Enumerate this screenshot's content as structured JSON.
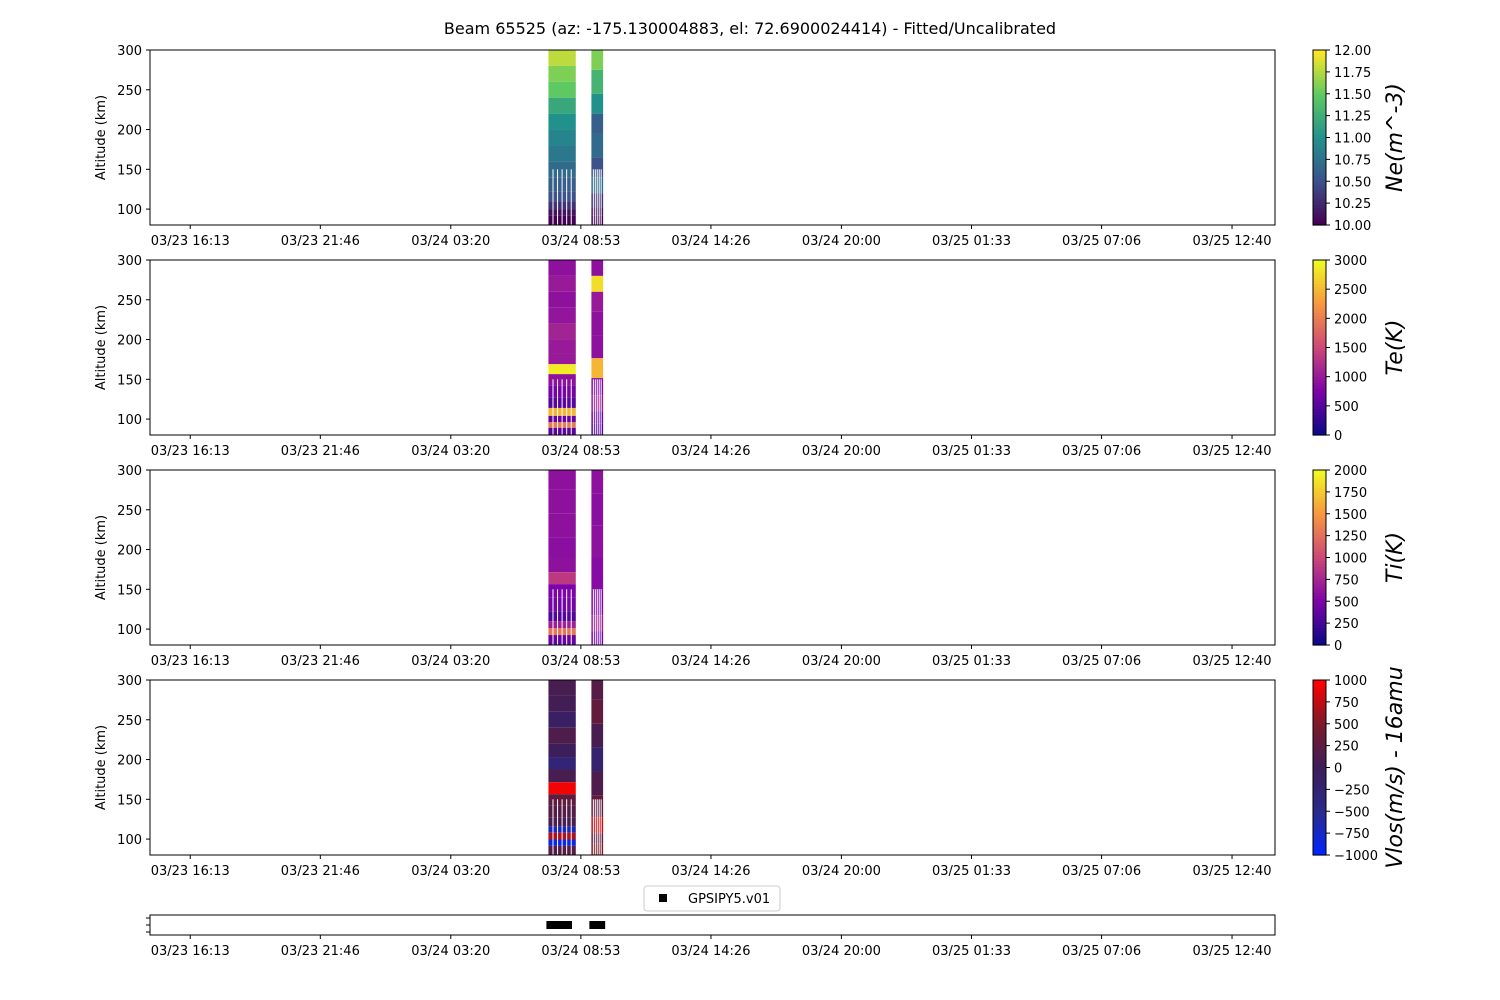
{
  "title": "Beam 65525 (az: -175.130004883, el: 72.6900024414) - Fitted/Uncalibrated",
  "time_ticks": [
    "03/23 16:13",
    "03/23 21:46",
    "03/24 03:20",
    "03/24 08:53",
    "03/24 14:26",
    "03/24 20:00",
    "03/25 01:33",
    "03/25 07:06",
    "03/25 12:40"
  ],
  "legend": {
    "label": "GPSIPY5.v01"
  },
  "chart_data": [
    {
      "type": "heatmap",
      "ylabel": "Altitude (km)",
      "ylim": [
        80,
        300
      ],
      "yticks": [
        "100",
        "150",
        "200",
        "250",
        "300"
      ],
      "colorbar": {
        "label": "Ne(m^-3)",
        "cmap": "viridis",
        "range": [
          10.0,
          12.0
        ],
        "ticks": [
          "10.00",
          "10.25",
          "10.50",
          "10.75",
          "11.00",
          "11.25",
          "11.50",
          "11.75",
          "12.00"
        ]
      },
      "x_range": [
        "03/23 14:30",
        "03/25 14:30"
      ],
      "data_blocks": [
        {
          "time_start": "03/24 07:30",
          "time_end": "03/24 08:40",
          "altitude_km": [
            [
              290,
              11.8
            ],
            [
              270,
              11.6
            ],
            [
              250,
              11.5
            ],
            [
              230,
              11.2
            ],
            [
              210,
              11.0
            ],
            [
              190,
              10.9
            ],
            [
              170,
              10.8
            ],
            [
              150,
              10.7
            ],
            [
              130,
              10.6
            ],
            [
              115,
              10.5
            ],
            [
              105,
              10.3
            ],
            [
              95,
              10.1
            ],
            [
              88,
              10.0
            ]
          ]
        },
        {
          "time_start": "03/24 09:20",
          "time_end": "03/24 09:50",
          "altitude_km": [
            [
              290,
              11.6
            ],
            [
              260,
              11.3
            ],
            [
              230,
              11.0
            ],
            [
              210,
              10.6
            ],
            [
              180,
              10.7
            ],
            [
              150,
              10.5
            ],
            [
              130,
              10.7
            ],
            [
              110,
              10.3
            ],
            [
              95,
              10.1
            ],
            [
              88,
              10.0
            ]
          ]
        }
      ]
    },
    {
      "type": "heatmap",
      "ylabel": "Altitude (km)",
      "ylim": [
        80,
        300
      ],
      "yticks": [
        "100",
        "150",
        "200",
        "250",
        "300"
      ],
      "colorbar": {
        "label": "Te(K)",
        "cmap": "plasma",
        "range": [
          0,
          3000
        ],
        "ticks": [
          "0",
          "500",
          "1000",
          "1500",
          "2000",
          "2500",
          "3000"
        ]
      },
      "x_range": [
        "03/23 14:30",
        "03/25 14:30"
      ],
      "data_blocks": [
        {
          "time_start": "03/24 07:30",
          "time_end": "03/24 08:40",
          "altitude_km": [
            [
              290,
              900
            ],
            [
              270,
              1000
            ],
            [
              250,
              900
            ],
            [
              230,
              950
            ],
            [
              210,
              1100
            ],
            [
              190,
              1000
            ],
            [
              175,
              1000
            ],
            [
              163,
              2900
            ],
            [
              150,
              900
            ],
            [
              135,
              700
            ],
            [
              120,
              500
            ],
            [
              108,
              2500
            ],
            [
              100,
              600
            ],
            [
              92,
              2000
            ],
            [
              86,
              500
            ]
          ]
        },
        {
          "time_start": "03/24 09:20",
          "time_end": "03/24 09:50",
          "altitude_km": [
            [
              290,
              900
            ],
            [
              270,
              2800
            ],
            [
              250,
              1000
            ],
            [
              220,
              900
            ],
            [
              190,
              900
            ],
            [
              163,
              2500
            ],
            [
              140,
              800
            ],
            [
              120,
              1000
            ],
            [
              100,
              600
            ],
            [
              88,
              500
            ]
          ]
        }
      ]
    },
    {
      "type": "heatmap",
      "ylabel": "Altitude (km)",
      "ylim": [
        80,
        300
      ],
      "yticks": [
        "100",
        "150",
        "200",
        "250",
        "300"
      ],
      "colorbar": {
        "label": "Ti(K)",
        "cmap": "plasma",
        "range": [
          0,
          2000
        ],
        "ticks": [
          "0",
          "250",
          "500",
          "750",
          "1000",
          "1250",
          "1500",
          "1750",
          "2000"
        ]
      },
      "x_range": [
        "03/23 14:30",
        "03/25 14:30"
      ],
      "data_blocks": [
        {
          "time_start": "03/24 07:30",
          "time_end": "03/24 08:40",
          "altitude_km": [
            [
              290,
              600
            ],
            [
              260,
              600
            ],
            [
              230,
              600
            ],
            [
              200,
              580
            ],
            [
              180,
              600
            ],
            [
              163,
              900
            ],
            [
              150,
              500
            ],
            [
              130,
              450
            ],
            [
              115,
              300
            ],
            [
              105,
              700
            ],
            [
              97,
              1300
            ],
            [
              88,
              400
            ]
          ]
        },
        {
          "time_start": "03/24 09:20",
          "time_end": "03/24 09:50",
          "altitude_km": [
            [
              290,
              600
            ],
            [
              250,
              580
            ],
            [
              210,
              600
            ],
            [
              170,
              550
            ],
            [
              130,
              500
            ],
            [
              105,
              700
            ],
            [
              90,
              450
            ]
          ]
        }
      ]
    },
    {
      "type": "heatmap",
      "ylabel": "Altitude (km)",
      "ylim": [
        80,
        300
      ],
      "yticks": [
        "100",
        "150",
        "200",
        "250",
        "300"
      ],
      "colorbar": {
        "label": "Vlos(m/s) - 16amu",
        "cmap": "bwr-dark",
        "range": [
          -1000,
          1000
        ],
        "ticks": [
          "-1000",
          "-750",
          "-500",
          "-250",
          "0",
          "250",
          "500",
          "750",
          "1000"
        ]
      },
      "x_range": [
        "03/23 14:30",
        "03/25 14:30"
      ],
      "data_blocks": [
        {
          "time_start": "03/24 07:30",
          "time_end": "03/24 08:40",
          "altitude_km": [
            [
              290,
              100
            ],
            [
              270,
              50
            ],
            [
              250,
              -100
            ],
            [
              230,
              150
            ],
            [
              210,
              0
            ],
            [
              195,
              -300
            ],
            [
              180,
              100
            ],
            [
              163,
              950
            ],
            [
              150,
              300
            ],
            [
              135,
              200
            ],
            [
              120,
              100
            ],
            [
              112,
              -700
            ],
            [
              104,
              700
            ],
            [
              95,
              -900
            ],
            [
              88,
              200
            ]
          ]
        },
        {
          "time_start": "03/24 09:20",
          "time_end": "03/24 09:50",
          "altitude_km": [
            [
              290,
              200
            ],
            [
              260,
              300
            ],
            [
              230,
              100
            ],
            [
              200,
              -200
            ],
            [
              170,
              150
            ],
            [
              140,
              300
            ],
            [
              115,
              800
            ],
            [
              100,
              300
            ],
            [
              88,
              500
            ]
          ]
        }
      ]
    },
    {
      "type": "scatter",
      "series": [
        {
          "name": "GPSIPY5.v01",
          "x": [
            "03/24 07:35",
            "03/24 07:40",
            "03/24 07:45",
            "03/24 07:50",
            "03/24 07:55",
            "03/24 08:00",
            "03/24 08:05",
            "03/24 08:10",
            "03/24 08:15",
            "03/24 08:20",
            "03/24 09:25",
            "03/24 09:30",
            "03/24 09:35",
            "03/24 09:40",
            "03/24 09:45"
          ],
          "y": [
            0,
            0,
            0,
            0,
            0,
            0,
            0,
            0,
            0,
            0,
            0,
            0,
            0,
            0,
            0
          ]
        }
      ]
    }
  ]
}
